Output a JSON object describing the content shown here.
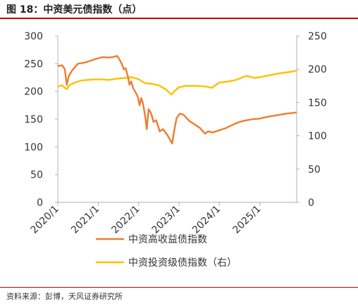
{
  "header": {
    "title": "图 18：中资美元债指数（点）"
  },
  "footer": {
    "source": "资料来源：彭博，天风证券研究所"
  },
  "colors": {
    "rule": "#c00000",
    "high_yield": "#ed7d31",
    "investment_grade": "#ffc000",
    "axis": "#b0b0b0"
  },
  "chart_data": {
    "type": "line",
    "title": "中资美元债指数（点）",
    "x_axis": {
      "type": "date",
      "range": [
        "2020-01-01",
        "2025-11-30"
      ],
      "tick_labels": [
        "2020/1",
        "2021/1",
        "2022/1",
        "2023/1",
        "2024/1",
        "2025/1"
      ]
    },
    "y_left": {
      "range": [
        0,
        300
      ],
      "ticks": [
        "0",
        "50",
        "100",
        "150",
        "200",
        "250",
        "300"
      ]
    },
    "y_right": {
      "range": [
        0,
        250
      ],
      "ticks": [
        "0",
        "50",
        "100",
        "150",
        "200",
        "250"
      ]
    },
    "grid": false,
    "legend_position": "bottom",
    "series": [
      {
        "name": "中资高收益债指数",
        "axis": "left",
        "color": "#ed7d31",
        "points": [
          [
            "2020-01-01",
            246
          ],
          [
            "2020-02-10",
            247
          ],
          [
            "2020-03-05",
            240
          ],
          [
            "2020-03-22",
            212
          ],
          [
            "2020-04-10",
            228
          ],
          [
            "2020-05-10",
            238
          ],
          [
            "2020-07-01",
            250
          ],
          [
            "2020-09-01",
            252
          ],
          [
            "2020-11-01",
            256
          ],
          [
            "2021-01-01",
            260
          ],
          [
            "2021-02-15",
            262
          ],
          [
            "2021-04-01",
            261
          ],
          [
            "2021-05-15",
            262
          ],
          [
            "2021-06-20",
            264
          ],
          [
            "2021-07-10",
            258
          ],
          [
            "2021-08-01",
            250
          ],
          [
            "2021-08-20",
            240
          ],
          [
            "2021-09-05",
            242
          ],
          [
            "2021-09-25",
            228
          ],
          [
            "2021-10-10",
            212
          ],
          [
            "2021-10-25",
            218
          ],
          [
            "2021-11-15",
            205
          ],
          [
            "2021-12-05",
            198
          ],
          [
            "2021-12-25",
            190
          ],
          [
            "2022-01-10",
            175
          ],
          [
            "2022-01-25",
            188
          ],
          [
            "2022-02-10",
            178
          ],
          [
            "2022-03-05",
            150
          ],
          [
            "2022-03-15",
            132
          ],
          [
            "2022-04-01",
            168
          ],
          [
            "2022-04-25",
            160
          ],
          [
            "2022-05-15",
            145
          ],
          [
            "2022-06-10",
            148
          ],
          [
            "2022-07-10",
            128
          ],
          [
            "2022-08-10",
            132
          ],
          [
            "2022-09-15",
            122
          ],
          [
            "2022-10-15",
            112
          ],
          [
            "2022-10-31",
            106
          ],
          [
            "2022-11-15",
            125
          ],
          [
            "2022-12-10",
            152
          ],
          [
            "2023-01-10",
            160
          ],
          [
            "2023-02-10",
            158
          ],
          [
            "2023-03-10",
            152
          ],
          [
            "2023-04-10",
            146
          ],
          [
            "2023-05-10",
            142
          ],
          [
            "2023-06-10",
            138
          ],
          [
            "2023-07-10",
            134
          ],
          [
            "2023-08-05",
            128
          ],
          [
            "2023-08-25",
            124
          ],
          [
            "2023-09-20",
            128
          ],
          [
            "2023-11-01",
            126
          ],
          [
            "2024-01-01",
            130
          ],
          [
            "2024-03-01",
            134
          ],
          [
            "2024-05-01",
            140
          ],
          [
            "2024-07-01",
            145
          ],
          [
            "2024-09-01",
            148
          ],
          [
            "2024-11-01",
            150
          ],
          [
            "2025-01-01",
            151
          ],
          [
            "2025-03-01",
            154
          ],
          [
            "2025-05-01",
            156
          ],
          [
            "2025-07-01",
            158
          ],
          [
            "2025-09-01",
            160
          ],
          [
            "2025-11-30",
            162
          ]
        ]
      },
      {
        "name": "中资投资级债指数（右）",
        "axis": "right",
        "color": "#ffc000",
        "points": [
          [
            "2020-01-01",
            174
          ],
          [
            "2020-02-10",
            176
          ],
          [
            "2020-03-05",
            172
          ],
          [
            "2020-03-22",
            170
          ],
          [
            "2020-04-15",
            176
          ],
          [
            "2020-06-01",
            180
          ],
          [
            "2020-08-01",
            183
          ],
          [
            "2020-10-01",
            184
          ],
          [
            "2021-01-01",
            185
          ],
          [
            "2021-04-01",
            184
          ],
          [
            "2021-07-01",
            186
          ],
          [
            "2021-09-01",
            187
          ],
          [
            "2021-11-01",
            188
          ],
          [
            "2022-01-01",
            185
          ],
          [
            "2022-03-01",
            179
          ],
          [
            "2022-05-01",
            178
          ],
          [
            "2022-07-01",
            176
          ],
          [
            "2022-09-01",
            170
          ],
          [
            "2022-10-25",
            162
          ],
          [
            "2022-11-15",
            166
          ],
          [
            "2022-12-31",
            173
          ],
          [
            "2023-03-01",
            175
          ],
          [
            "2023-06-01",
            175
          ],
          [
            "2023-09-01",
            174
          ],
          [
            "2023-10-25",
            172
          ],
          [
            "2023-12-31",
            180
          ],
          [
            "2024-03-01",
            181
          ],
          [
            "2024-06-01",
            184
          ],
          [
            "2024-09-01",
            190
          ],
          [
            "2024-11-15",
            187
          ],
          [
            "2025-01-01",
            188
          ],
          [
            "2025-04-01",
            191
          ],
          [
            "2025-07-01",
            194
          ],
          [
            "2025-10-01",
            196
          ],
          [
            "2025-11-30",
            198
          ]
        ]
      }
    ]
  }
}
